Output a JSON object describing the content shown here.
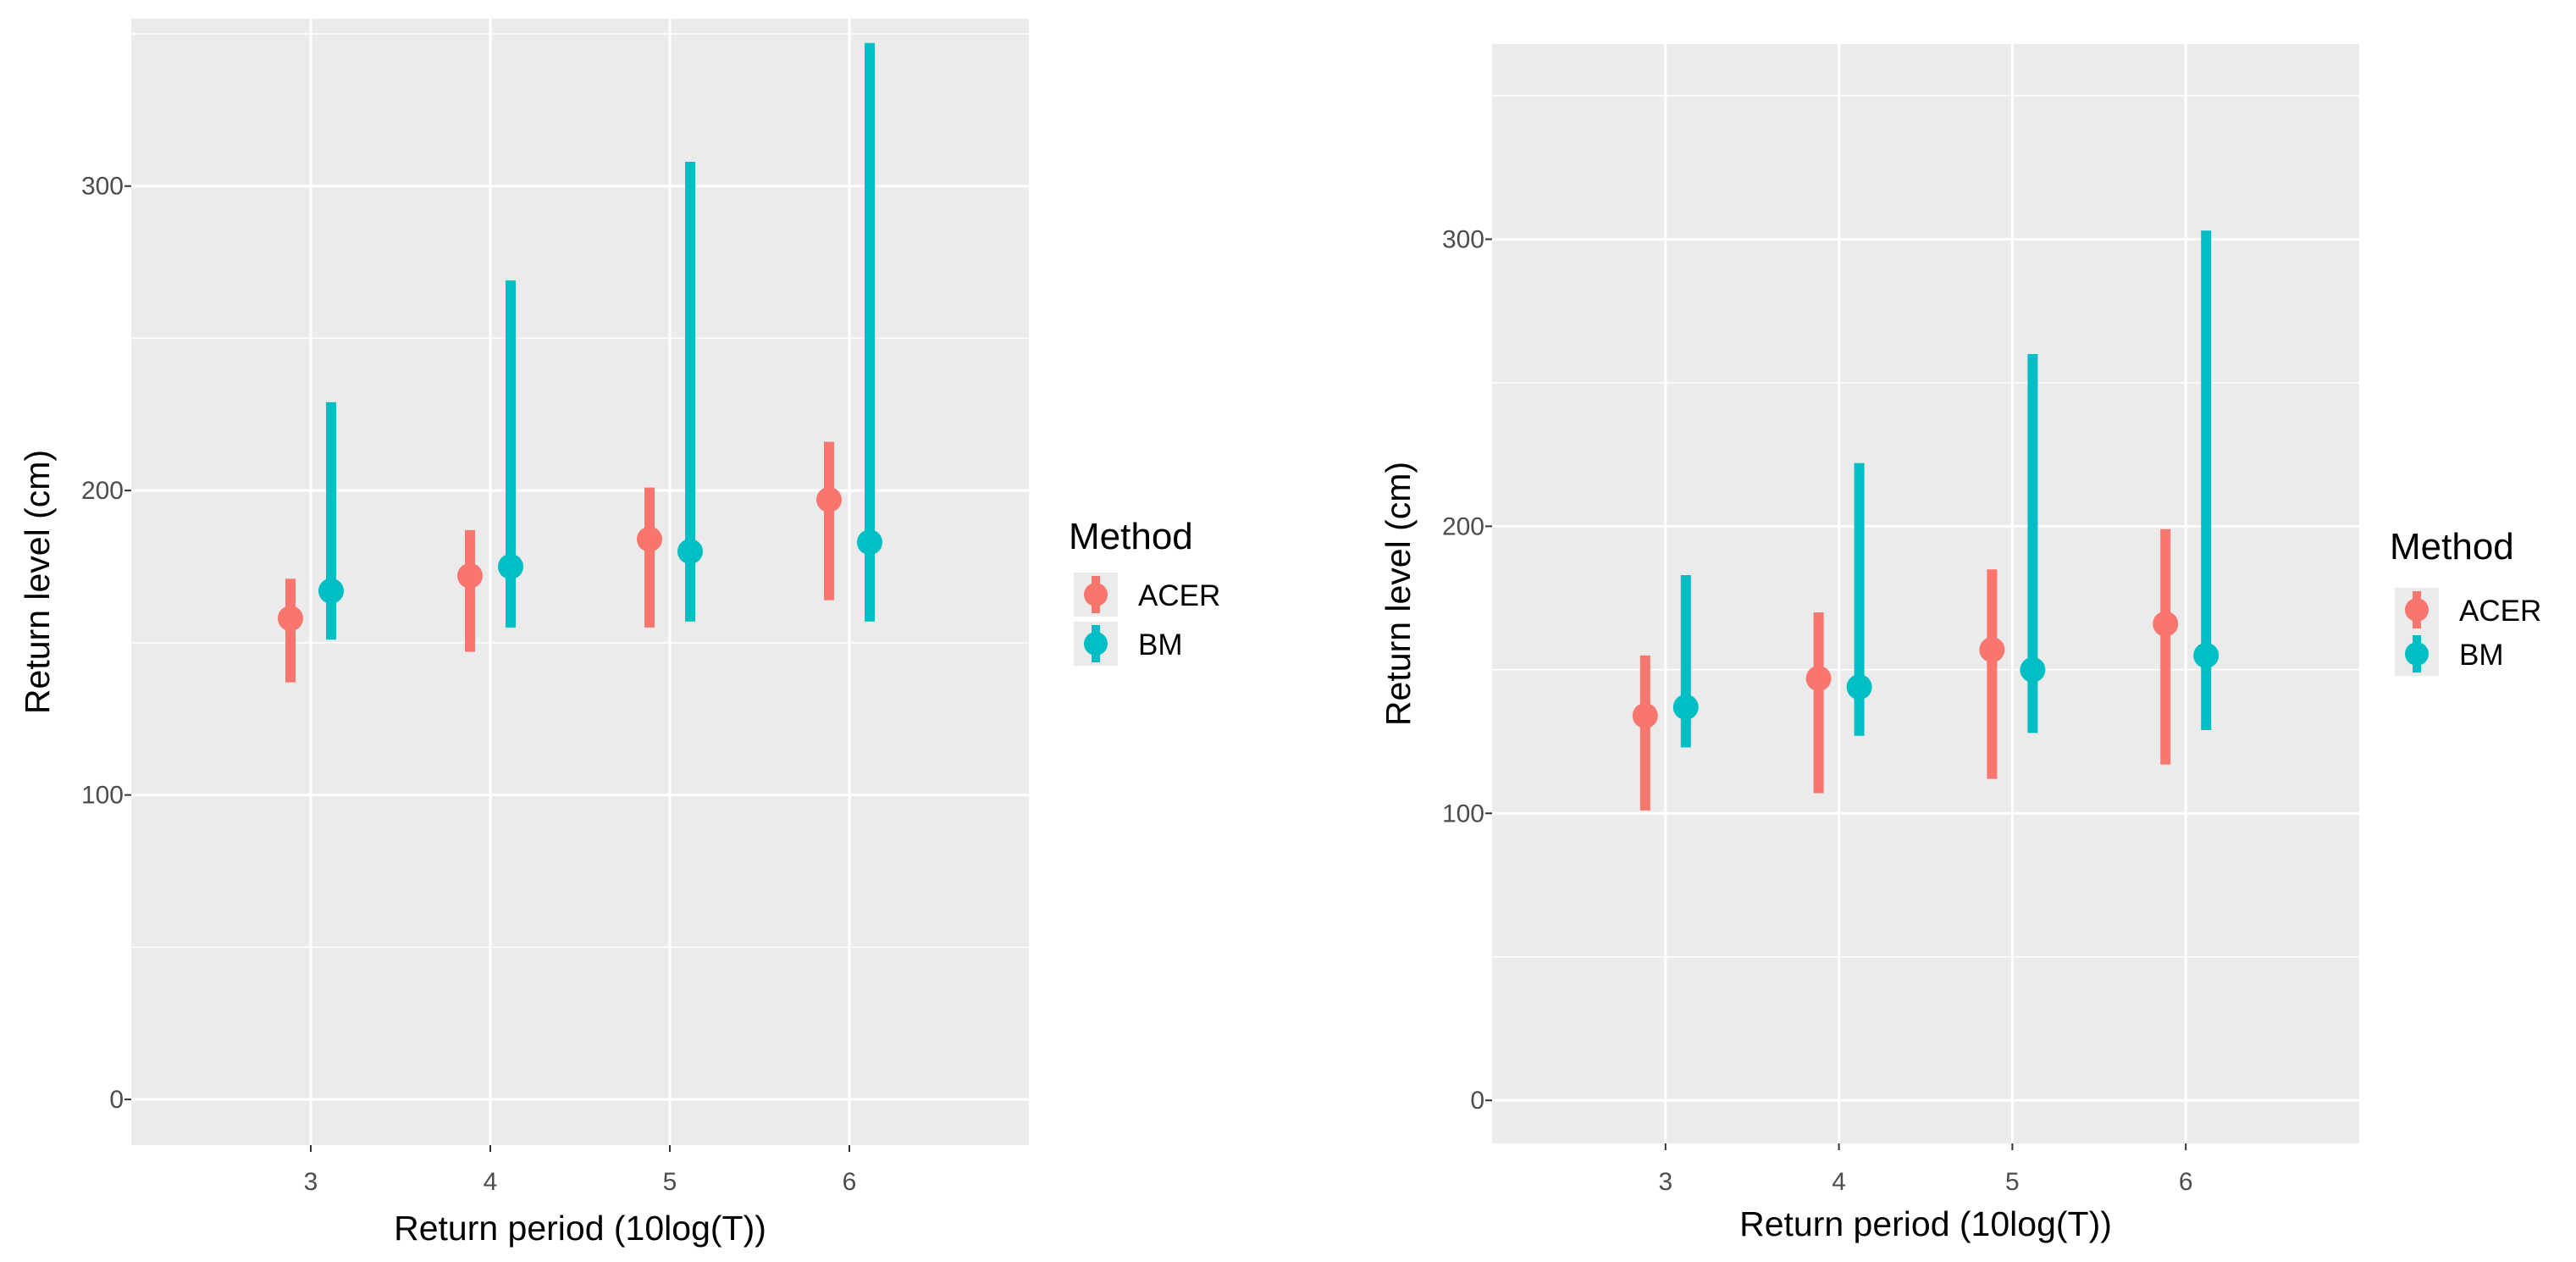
{
  "colors": {
    "ACER": "#F8766D",
    "BM": "#00BFC4"
  },
  "chart_data": [
    {
      "type": "errorbar",
      "title": "",
      "xlabel": "Return period (10log(T))",
      "ylabel": "Return level (cm)",
      "categories": [
        "3",
        "4",
        "5",
        "6"
      ],
      "yticks": [
        "0",
        "100",
        "200",
        "300"
      ],
      "ylim": [
        -15,
        355
      ],
      "legend": {
        "title": "Method",
        "position": "right",
        "entries": [
          "ACER",
          "BM"
        ]
      },
      "series": [
        {
          "name": "ACER",
          "estimate": [
            158,
            172,
            184,
            197
          ],
          "lower": [
            137,
            147,
            155,
            164
          ],
          "upper": [
            171,
            187,
            201,
            216
          ]
        },
        {
          "name": "BM",
          "estimate": [
            167,
            175,
            180,
            183
          ],
          "lower": [
            151,
            155,
            157,
            157
          ],
          "upper": [
            229,
            269,
            308,
            347
          ]
        }
      ]
    },
    {
      "type": "errorbar",
      "title": "",
      "xlabel": "Return period (10log(T))",
      "ylabel": "Return level (cm)",
      "categories": [
        "3",
        "4",
        "5",
        "6"
      ],
      "yticks": [
        "0",
        "100",
        "200",
        "300"
      ],
      "ylim": [
        -15,
        368
      ],
      "legend": {
        "title": "Method",
        "position": "right",
        "entries": [
          "ACER",
          "BM"
        ]
      },
      "series": [
        {
          "name": "ACER",
          "estimate": [
            134,
            147,
            157,
            166
          ],
          "lower": [
            101,
            107,
            112,
            117
          ],
          "upper": [
            155,
            170,
            185,
            199
          ]
        },
        {
          "name": "BM",
          "estimate": [
            137,
            144,
            150,
            155
          ],
          "lower": [
            123,
            127,
            128,
            129
          ],
          "upper": [
            183,
            222,
            260,
            303
          ]
        }
      ]
    }
  ]
}
